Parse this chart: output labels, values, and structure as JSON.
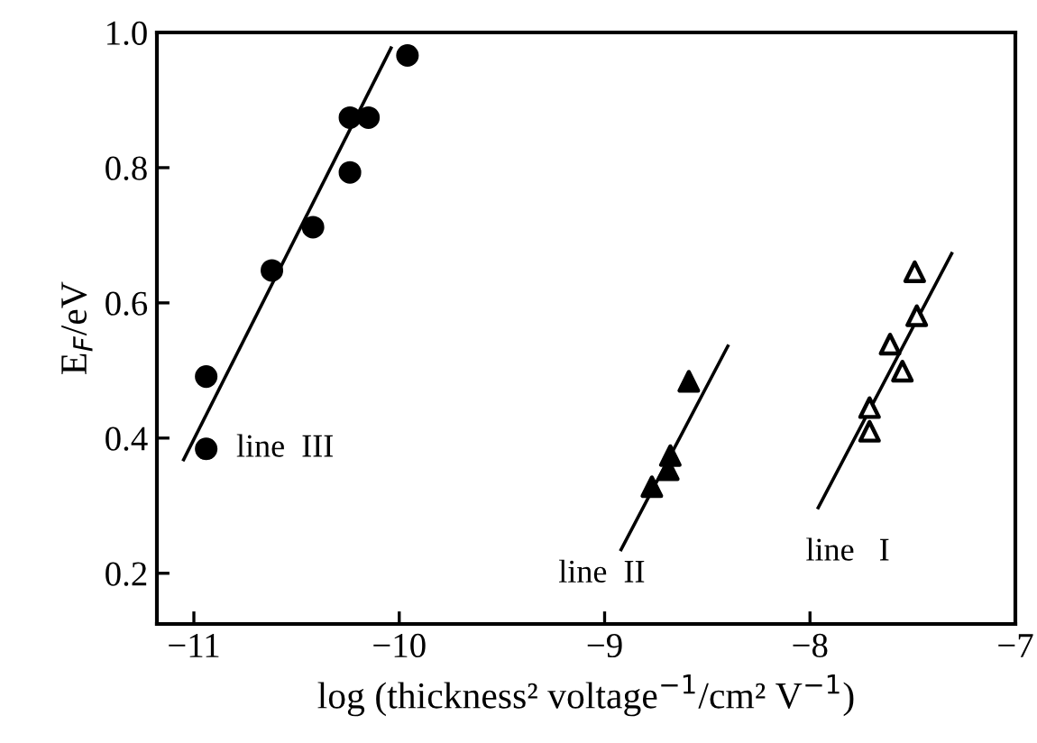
{
  "chart_data": {
    "type": "scatter",
    "xlabel": "log (thickness² voltage$^{−1}$/cm² V$^{−1}$)",
    "ylabel": "E$_{F}$/eV",
    "xlim": [
      -11.18,
      -7
    ],
    "ylim": [
      0.125,
      1.0
    ],
    "xticks": [
      -11,
      -10,
      -9,
      -8,
      -7
    ],
    "yticks": [
      0.2,
      0.4,
      0.6,
      0.8,
      {
        "value": 1,
        "label": "1.0"
      }
    ],
    "grid": false,
    "series": [
      {
        "marker": "circle",
        "color": "#000000",
        "x": [
          -10.94,
          -10.94,
          -10.62,
          -10.42,
          -10.24,
          -10.24,
          -10.15,
          -9.96
        ],
        "values": [
          0.491,
          0.384,
          0.648,
          0.712,
          0.793,
          0.874,
          0.874,
          0.966
        ]
      },
      {
        "marker": "triangle",
        "color": "#000000",
        "x": [
          -8.77,
          -8.69,
          -8.68,
          -8.59
        ],
        "values": [
          0.328,
          0.353,
          0.374,
          0.484
        ]
      },
      {
        "marker": "triangle",
        "color": "#ffffff",
        "x": [
          -7.49,
          -7.48,
          -7.61,
          -7.55,
          -7.71,
          -7.71
        ],
        "values": [
          0.646,
          0.581,
          0.539,
          0.499,
          0.445,
          0.41
        ]
      },
      {
        "type": "line",
        "color": "#000000",
        "x": [
          -11.05,
          -10.04
        ],
        "values": [
          0.368,
          0.977
        ]
      },
      {
        "type": "line",
        "color": "#000000",
        "x": [
          -8.92,
          -8.4
        ],
        "values": [
          0.235,
          0.536
        ]
      },
      {
        "type": "line",
        "color": "#000000",
        "x": [
          -7.96,
          -7.31
        ],
        "values": [
          0.297,
          0.673
        ]
      }
    ],
    "annotations": [
      {
        "text": "line  III",
        "x": -10.94,
        "y": 0.384
      },
      {
        "text": "line  II",
        "x": -8.92,
        "y": 0.235
      },
      {
        "text": "line   I",
        "x": -7.96,
        "y": 0.297
      }
    ]
  }
}
